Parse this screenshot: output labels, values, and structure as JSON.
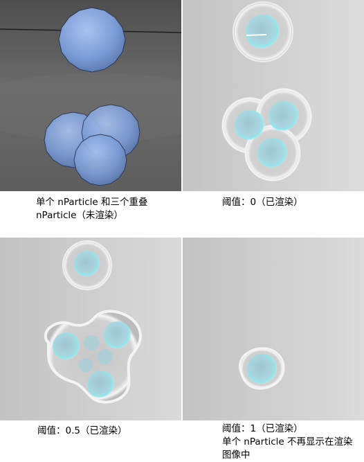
{
  "captions": {
    "p1": [
      "单个 nParticle 和三个重叠",
      "nParticle（未渲染）"
    ],
    "p2": [
      "阈值：0（已渲染）"
    ],
    "p3": [
      "阈值：0.5（已渲染）"
    ],
    "p4": [
      "阈值：1（已渲染）",
      "单个 nParticle 不再显示在渲染",
      "图像中"
    ]
  },
  "colors": {
    "viewport_bg": "#5c5c5c",
    "render_bg": "#cfcfcf",
    "particle_blue": "#7d9fd6",
    "particle_outline": "#2a3550",
    "glow_cyan": "#7fe6ea"
  }
}
